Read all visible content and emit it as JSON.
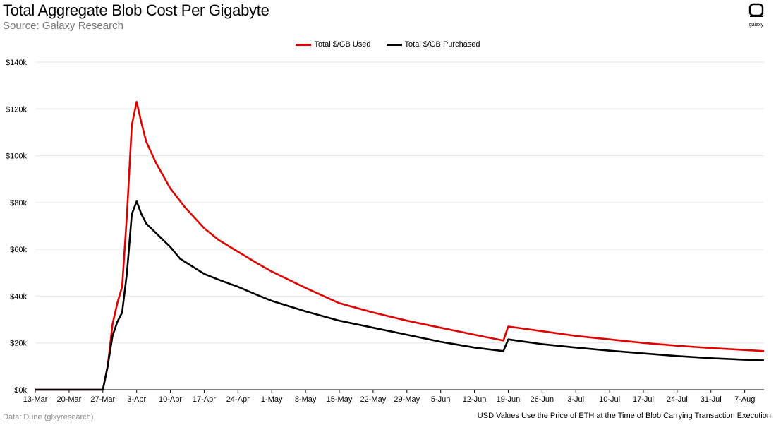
{
  "header": {
    "title": "Total Aggregate Blob Cost Per Gigabyte",
    "subtitle": "Source: Galaxy Research",
    "logo_text": "galaxy"
  },
  "footer": {
    "left": "Data: Dune (glxyresearch)",
    "right": "USD Values Use the Price of ETH at the Time of Blob Carrying Transaction Execution."
  },
  "colors": {
    "used": "#e00000",
    "purchased": "#000000",
    "grid": "#e6e6e6"
  },
  "chart_data": {
    "type": "line",
    "title": "Total Aggregate Blob Cost Per Gigabyte",
    "xlabel": "",
    "ylabel": "",
    "x_start": "13-Mar",
    "x_ticks": [
      "13-Mar",
      "20-Mar",
      "27-Mar",
      "3-Apr",
      "10-Apr",
      "17-Apr",
      "24-Apr",
      "1-May",
      "8-May",
      "15-May",
      "22-May",
      "29-May",
      "5-Jun",
      "12-Jun",
      "19-Jun",
      "26-Jun",
      "3-Jul",
      "10-Jul",
      "17-Jul",
      "24-Jul",
      "31-Jul",
      "7-Aug"
    ],
    "y_ticks": [
      "$0k",
      "$20k",
      "$40k",
      "$60k",
      "$80k",
      "$100k",
      "$120k",
      "$140k"
    ],
    "ylim": [
      0,
      140000
    ],
    "grid": true,
    "legend": "top-center",
    "series": [
      {
        "name": "Total $/GB Used",
        "color": "#e00000",
        "points": [
          [
            "13-Mar",
            0
          ],
          [
            "27-Mar",
            0
          ],
          [
            "28-Mar",
            10000
          ],
          [
            "29-Mar",
            28000
          ],
          [
            "30-Mar",
            37000
          ],
          [
            "31-Mar",
            44000
          ],
          [
            "1-Apr",
            75000
          ],
          [
            "2-Apr",
            113000
          ],
          [
            "3-Apr",
            123000
          ],
          [
            "4-Apr",
            114000
          ],
          [
            "5-Apr",
            106000
          ],
          [
            "7-Apr",
            97000
          ],
          [
            "10-Apr",
            86000
          ],
          [
            "13-Apr",
            78000
          ],
          [
            "17-Apr",
            69000
          ],
          [
            "20-Apr",
            64000
          ],
          [
            "24-Apr",
            59000
          ],
          [
            "28-Apr",
            54000
          ],
          [
            "1-May",
            50500
          ],
          [
            "8-May",
            43500
          ],
          [
            "15-May",
            37000
          ],
          [
            "22-May",
            33000
          ],
          [
            "29-May",
            29500
          ],
          [
            "5-Jun",
            26500
          ],
          [
            "12-Jun",
            23500
          ],
          [
            "18-Jun",
            21000
          ],
          [
            "19-Jun",
            27000
          ],
          [
            "26-Jun",
            25000
          ],
          [
            "3-Jul",
            23000
          ],
          [
            "10-Jul",
            21500
          ],
          [
            "17-Jul",
            20000
          ],
          [
            "24-Jul",
            18800
          ],
          [
            "31-Jul",
            17800
          ],
          [
            "7-Aug",
            17000
          ],
          [
            "11-Aug",
            16500
          ]
        ]
      },
      {
        "name": "Total $/GB Purchased",
        "color": "#000000",
        "points": [
          [
            "13-Mar",
            0
          ],
          [
            "27-Mar",
            0
          ],
          [
            "28-Mar",
            10000
          ],
          [
            "29-Mar",
            23000
          ],
          [
            "30-Mar",
            29000
          ],
          [
            "31-Mar",
            33000
          ],
          [
            "1-Apr",
            50000
          ],
          [
            "2-Apr",
            75000
          ],
          [
            "3-Apr",
            80500
          ],
          [
            "4-Apr",
            75000
          ],
          [
            "5-Apr",
            71000
          ],
          [
            "7-Apr",
            67000
          ],
          [
            "10-Apr",
            61000
          ],
          [
            "12-Apr",
            56000
          ],
          [
            "17-Apr",
            49500
          ],
          [
            "20-Apr",
            47000
          ],
          [
            "24-Apr",
            44000
          ],
          [
            "28-Apr",
            40500
          ],
          [
            "1-May",
            38000
          ],
          [
            "8-May",
            33500
          ],
          [
            "15-May",
            29500
          ],
          [
            "22-May",
            26500
          ],
          [
            "29-May",
            23500
          ],
          [
            "5-Jun",
            20500
          ],
          [
            "12-Jun",
            18000
          ],
          [
            "18-Jun",
            16500
          ],
          [
            "19-Jun",
            21500
          ],
          [
            "26-Jun",
            19500
          ],
          [
            "3-Jul",
            18000
          ],
          [
            "10-Jul",
            16700
          ],
          [
            "17-Jul",
            15500
          ],
          [
            "24-Jul",
            14400
          ],
          [
            "31-Jul",
            13500
          ],
          [
            "7-Aug",
            12800
          ],
          [
            "11-Aug",
            12500
          ]
        ]
      }
    ]
  }
}
